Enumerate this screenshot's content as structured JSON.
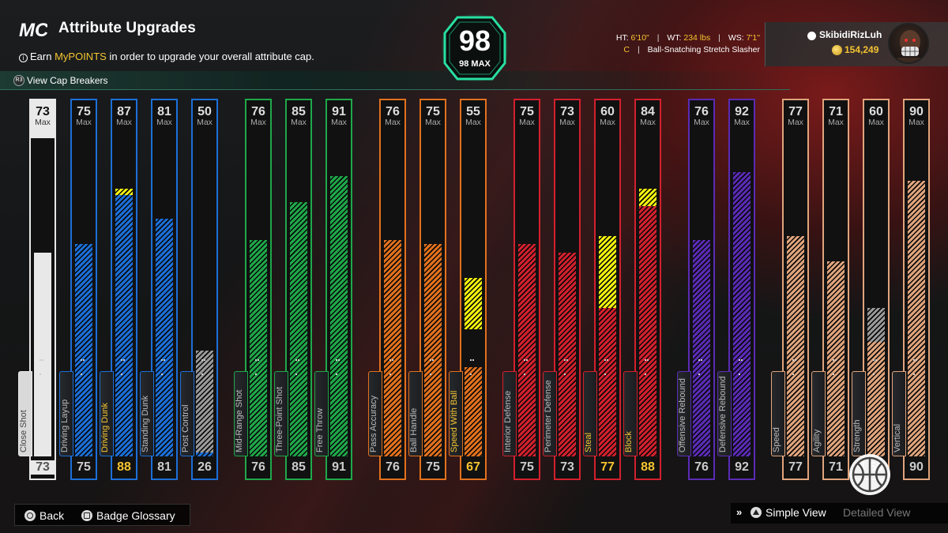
{
  "header": {
    "logo_text": "MC",
    "title": "Attribute Upgrades",
    "earn_prefix": "Earn ",
    "earn_highlight": "MyPOINTS",
    "earn_suffix": " in order to upgrade your overall attribute cap.",
    "cap_breakers": "View Cap Breakers"
  },
  "overall": {
    "value": "98",
    "max_label": "98 MAX"
  },
  "player": {
    "ht_label": "HT:",
    "ht": "6'10\"",
    "wt_label": "WT:",
    "wt": "234 lbs",
    "ws_label": "WS:",
    "ws": "7'1\"",
    "position": "C",
    "archetype": "Ball-Snatching Stretch Slasher",
    "username": "SkibidiRizLuh",
    "coins": "154,249"
  },
  "max_label": "Max",
  "attributes": [
    {
      "name": "Close Shot",
      "cap": 73,
      "value": 73,
      "boost": 73,
      "group": "white"
    },
    {
      "name": "Driving Layup",
      "cap": 75,
      "value": 75,
      "boost": 75,
      "group": "blue"
    },
    {
      "name": "Driving Dunk",
      "cap": 87,
      "value": 88,
      "boost": 87,
      "group": "blue",
      "highlight": true
    },
    {
      "name": "Standing Dunk",
      "cap": 81,
      "value": 81,
      "boost": 81,
      "group": "blue"
    },
    {
      "name": "Post Control",
      "cap": 50,
      "value": 26,
      "boost": 50,
      "group": "blue",
      "gray_boost": true
    },
    {
      "name": "Mid-Range Shot",
      "cap": 76,
      "value": 76,
      "boost": 76,
      "group": "green"
    },
    {
      "name": "Three-Point Shot",
      "cap": 85,
      "value": 85,
      "boost": 85,
      "group": "green"
    },
    {
      "name": "Free Throw",
      "cap": 91,
      "value": 91,
      "boost": 91,
      "group": "green"
    },
    {
      "name": "Pass Accuracy",
      "cap": 76,
      "value": 76,
      "boost": 76,
      "group": "orange"
    },
    {
      "name": "Ball Handle",
      "cap": 75,
      "value": 75,
      "boost": 75,
      "group": "orange"
    },
    {
      "name": "Speed With Ball",
      "cap": 55,
      "value": 67,
      "boost": 46,
      "group": "orange",
      "highlight": true
    },
    {
      "name": "Interior Defense",
      "cap": 75,
      "value": 75,
      "boost": 75,
      "group": "red"
    },
    {
      "name": "Perimeter Defense",
      "cap": 73,
      "value": 73,
      "boost": 73,
      "group": "red"
    },
    {
      "name": "Steal",
      "cap": 60,
      "value": 77,
      "boost": 60,
      "group": "red",
      "highlight": true
    },
    {
      "name": "Block",
      "cap": 84,
      "value": 88,
      "boost": 84,
      "group": "red",
      "highlight": true
    },
    {
      "name": "Offensive Rebound",
      "cap": 76,
      "value": 76,
      "boost": 76,
      "group": "purple"
    },
    {
      "name": "Defensive Rebound",
      "cap": 92,
      "value": 92,
      "boost": 92,
      "group": "purple"
    },
    {
      "name": "Speed",
      "cap": 77,
      "value": 77,
      "boost": 77,
      "group": "tan"
    },
    {
      "name": "Agility",
      "cap": 71,
      "value": 71,
      "boost": 71,
      "group": "tan"
    },
    {
      "name": "Strength",
      "cap": 60,
      "value": 60,
      "boost": 60,
      "group": "tan",
      "gray_boost": true
    },
    {
      "name": "Vertical",
      "cap": 90,
      "value": 90,
      "boost": 90,
      "group": "tan"
    }
  ],
  "colors": {
    "white": "#e8e8e8",
    "blue": "#1c6fd8",
    "green": "#1fa84a",
    "orange": "#e2711d",
    "red": "#d3202e",
    "purple": "#5a2bb5",
    "tan": "#e0a47c",
    "highlight": "#f5c431",
    "boost_yellow": "#f2f20e"
  },
  "footer": {
    "back": "Back",
    "badge_glossary": "Badge Glossary",
    "simple_view": "Simple View",
    "detailed_view": "Detailed View"
  }
}
